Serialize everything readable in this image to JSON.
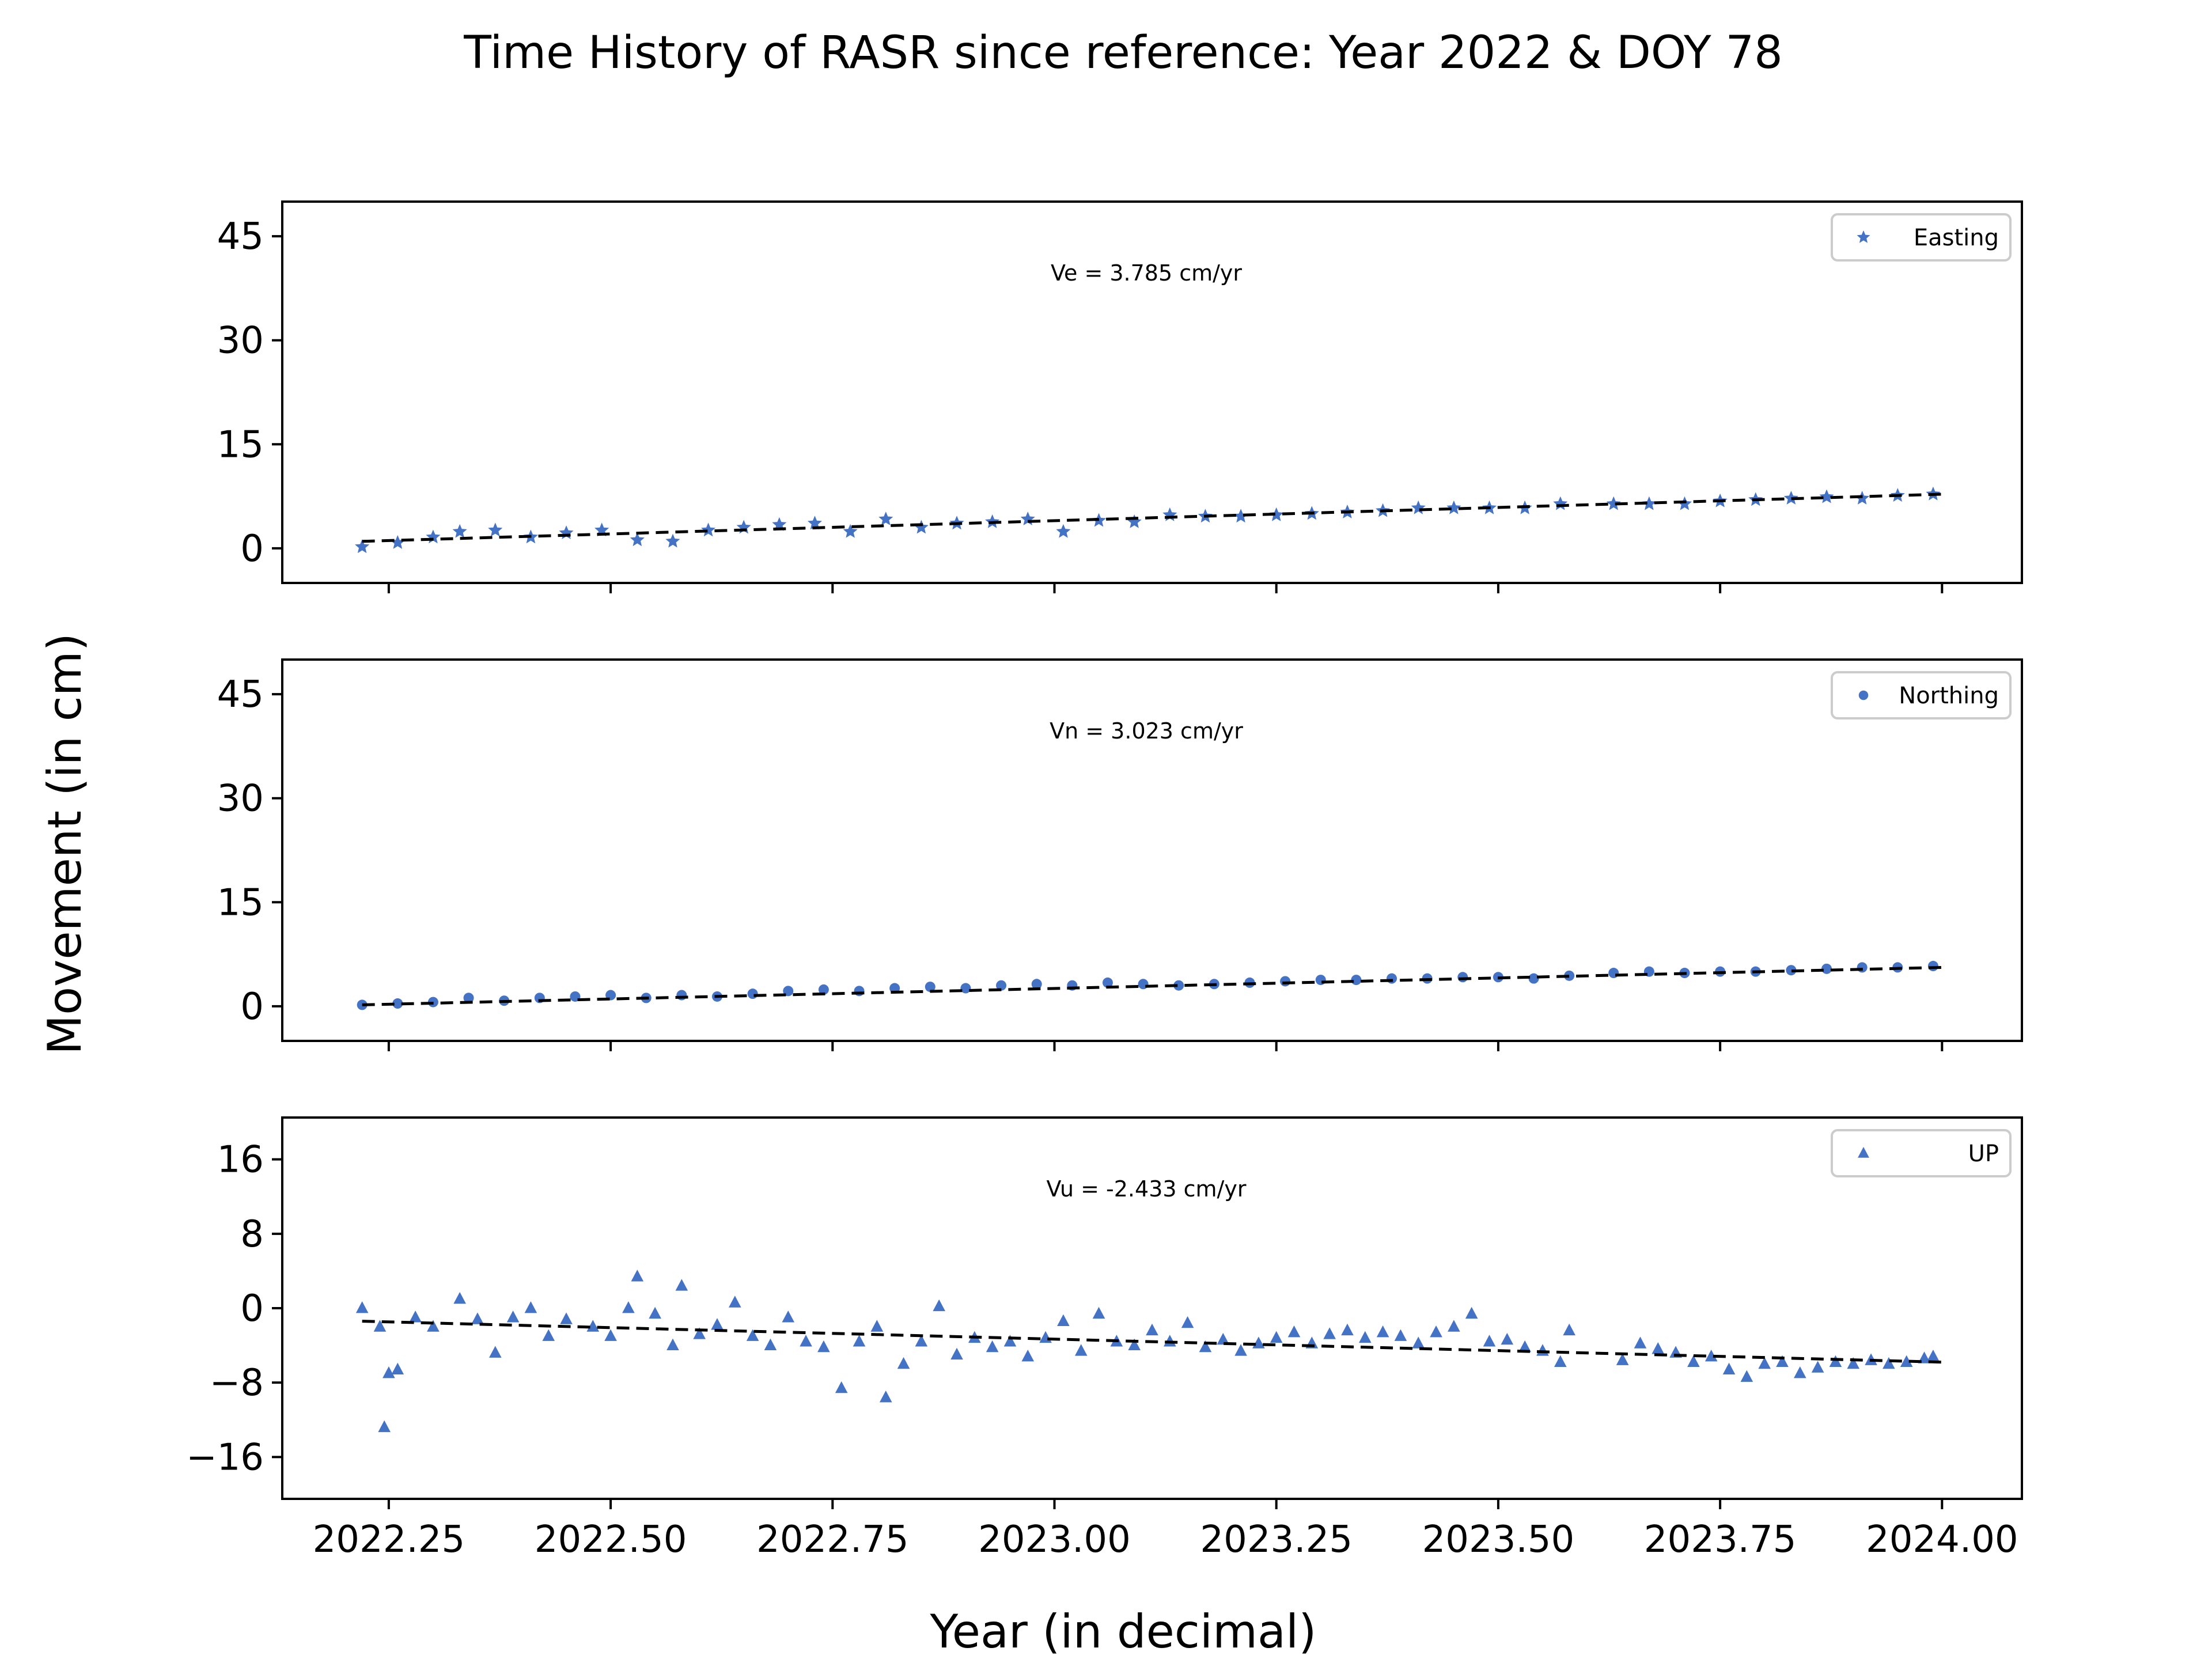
{
  "figure": {
    "title": "Time History of RASR since reference: Year 2022 & DOY 78",
    "xlabel": "Year (in decimal)",
    "ylabel": "Movement (in cm)"
  },
  "colors": {
    "marker": "#4472C4",
    "fit": "#000000",
    "axes": "#000000"
  },
  "chart_data": [
    {
      "type": "scatter",
      "series": [
        {
          "name": "Easting",
          "marker": "star",
          "points": [
            [
              2022.22,
              0.2
            ],
            [
              2022.26,
              0.8
            ],
            [
              2022.3,
              1.6
            ],
            [
              2022.33,
              2.4
            ],
            [
              2022.37,
              2.6
            ],
            [
              2022.41,
              1.6
            ],
            [
              2022.45,
              2.2
            ],
            [
              2022.49,
              2.6
            ],
            [
              2022.53,
              1.2
            ],
            [
              2022.57,
              1.0
            ],
            [
              2022.61,
              2.6
            ],
            [
              2022.65,
              3.0
            ],
            [
              2022.69,
              3.4
            ],
            [
              2022.73,
              3.6
            ],
            [
              2022.77,
              2.4
            ],
            [
              2022.81,
              4.2
            ],
            [
              2022.85,
              3.0
            ],
            [
              2022.89,
              3.6
            ],
            [
              2022.93,
              3.8
            ],
            [
              2022.97,
              4.2
            ],
            [
              2023.01,
              2.4
            ],
            [
              2023.05,
              4.0
            ],
            [
              2023.09,
              3.8
            ],
            [
              2023.13,
              4.8
            ],
            [
              2023.17,
              4.6
            ],
            [
              2023.21,
              4.6
            ],
            [
              2023.25,
              4.8
            ],
            [
              2023.29,
              5.0
            ],
            [
              2023.33,
              5.2
            ],
            [
              2023.37,
              5.4
            ],
            [
              2023.41,
              5.8
            ],
            [
              2023.45,
              5.8
            ],
            [
              2023.49,
              5.8
            ],
            [
              2023.53,
              5.8
            ],
            [
              2023.57,
              6.4
            ],
            [
              2023.63,
              6.4
            ],
            [
              2023.67,
              6.4
            ],
            [
              2023.71,
              6.4
            ],
            [
              2023.75,
              6.8
            ],
            [
              2023.79,
              7.0
            ],
            [
              2023.83,
              7.2
            ],
            [
              2023.87,
              7.4
            ],
            [
              2023.91,
              7.2
            ],
            [
              2023.95,
              7.6
            ],
            [
              2023.99,
              7.8
            ]
          ]
        },
        {
          "name": "fit",
          "style": "dashed",
          "x": [
            2022.22,
            2024.0
          ],
          "y": [
            1.0,
            7.8
          ]
        }
      ],
      "annotation": "Ve =  3.785 cm/yr",
      "legend": {
        "label": "Easting",
        "position": "top-right"
      },
      "xlim": [
        2022.13,
        2024.09
      ],
      "ylim": [
        -5,
        50
      ],
      "yticks": [
        0,
        15,
        30,
        45
      ],
      "ytick_labels": [
        "0",
        "15",
        "30",
        "45"
      ]
    },
    {
      "type": "scatter",
      "series": [
        {
          "name": "Northing",
          "marker": "circle",
          "points": [
            [
              2022.22,
              0.2
            ],
            [
              2022.26,
              0.4
            ],
            [
              2022.3,
              0.6
            ],
            [
              2022.34,
              1.2
            ],
            [
              2022.38,
              0.8
            ],
            [
              2022.42,
              1.2
            ],
            [
              2022.46,
              1.4
            ],
            [
              2022.5,
              1.6
            ],
            [
              2022.54,
              1.2
            ],
            [
              2022.58,
              1.6
            ],
            [
              2022.62,
              1.4
            ],
            [
              2022.66,
              1.8
            ],
            [
              2022.7,
              2.2
            ],
            [
              2022.74,
              2.4
            ],
            [
              2022.78,
              2.2
            ],
            [
              2022.82,
              2.6
            ],
            [
              2022.86,
              2.8
            ],
            [
              2022.9,
              2.6
            ],
            [
              2022.94,
              3.0
            ],
            [
              2022.98,
              3.2
            ],
            [
              2023.02,
              3.0
            ],
            [
              2023.06,
              3.4
            ],
            [
              2023.1,
              3.2
            ],
            [
              2023.14,
              3.0
            ],
            [
              2023.18,
              3.2
            ],
            [
              2023.22,
              3.4
            ],
            [
              2023.26,
              3.6
            ],
            [
              2023.3,
              3.8
            ],
            [
              2023.34,
              3.8
            ],
            [
              2023.38,
              4.0
            ],
            [
              2023.42,
              4.0
            ],
            [
              2023.46,
              4.2
            ],
            [
              2023.5,
              4.2
            ],
            [
              2023.54,
              4.0
            ],
            [
              2023.58,
              4.4
            ],
            [
              2023.63,
              4.8
            ],
            [
              2023.67,
              5.0
            ],
            [
              2023.71,
              4.8
            ],
            [
              2023.75,
              5.0
            ],
            [
              2023.79,
              5.0
            ],
            [
              2023.83,
              5.2
            ],
            [
              2023.87,
              5.4
            ],
            [
              2023.91,
              5.6
            ],
            [
              2023.95,
              5.6
            ],
            [
              2023.99,
              5.8
            ]
          ]
        },
        {
          "name": "fit",
          "style": "dashed",
          "x": [
            2022.22,
            2024.0
          ],
          "y": [
            0.2,
            5.6
          ]
        }
      ],
      "annotation": "Vn =  3.023 cm/yr",
      "legend": {
        "label": "Northing",
        "position": "top-right"
      },
      "xlim": [
        2022.13,
        2024.09
      ],
      "ylim": [
        -5,
        50
      ],
      "yticks": [
        0,
        15,
        30,
        45
      ],
      "ytick_labels": [
        "0",
        "15",
        "30",
        "45"
      ]
    },
    {
      "type": "scatter",
      "series": [
        {
          "name": "UP",
          "marker": "triangle",
          "points": [
            [
              2022.22,
              0.0
            ],
            [
              2022.24,
              -2.0
            ],
            [
              2022.245,
              -12.8
            ],
            [
              2022.25,
              -7.0
            ],
            [
              2022.26,
              -6.6
            ],
            [
              2022.28,
              -1.0
            ],
            [
              2022.3,
              -2.0
            ],
            [
              2022.33,
              1.0
            ],
            [
              2022.35,
              -1.2
            ],
            [
              2022.37,
              -4.8
            ],
            [
              2022.39,
              -1.0
            ],
            [
              2022.41,
              0.0
            ],
            [
              2022.43,
              -3.0
            ],
            [
              2022.45,
              -1.2
            ],
            [
              2022.48,
              -2.0
            ],
            [
              2022.5,
              -3.0
            ],
            [
              2022.52,
              0.0
            ],
            [
              2022.53,
              3.4
            ],
            [
              2022.55,
              -0.6
            ],
            [
              2022.57,
              -4.0
            ],
            [
              2022.58,
              2.4
            ],
            [
              2022.6,
              -2.8
            ],
            [
              2022.62,
              -1.8
            ],
            [
              2022.64,
              0.6
            ],
            [
              2022.66,
              -3.0
            ],
            [
              2022.68,
              -4.0
            ],
            [
              2022.7,
              -1.0
            ],
            [
              2022.72,
              -3.6
            ],
            [
              2022.74,
              -4.2
            ],
            [
              2022.76,
              -8.6
            ],
            [
              2022.78,
              -3.6
            ],
            [
              2022.8,
              -2.0
            ],
            [
              2022.81,
              -9.6
            ],
            [
              2022.83,
              -6.0
            ],
            [
              2022.85,
              -3.6
            ],
            [
              2022.87,
              0.2
            ],
            [
              2022.89,
              -5.0
            ],
            [
              2022.91,
              -3.2
            ],
            [
              2022.93,
              -4.2
            ],
            [
              2022.95,
              -3.6
            ],
            [
              2022.97,
              -5.2
            ],
            [
              2022.99,
              -3.2
            ],
            [
              2023.01,
              -1.4
            ],
            [
              2023.03,
              -4.6
            ],
            [
              2023.05,
              -0.6
            ],
            [
              2023.07,
              -3.6
            ],
            [
              2023.09,
              -4.0
            ],
            [
              2023.11,
              -2.4
            ],
            [
              2023.13,
              -3.6
            ],
            [
              2023.15,
              -1.6
            ],
            [
              2023.17,
              -4.2
            ],
            [
              2023.19,
              -3.4
            ],
            [
              2023.21,
              -4.6
            ],
            [
              2023.23,
              -3.8
            ],
            [
              2023.25,
              -3.2
            ],
            [
              2023.27,
              -2.6
            ],
            [
              2023.29,
              -3.8
            ],
            [
              2023.31,
              -2.8
            ],
            [
              2023.33,
              -2.4
            ],
            [
              2023.35,
              -3.2
            ],
            [
              2023.37,
              -2.6
            ],
            [
              2023.39,
              -3.0
            ],
            [
              2023.41,
              -3.8
            ],
            [
              2023.43,
              -2.6
            ],
            [
              2023.45,
              -2.0
            ],
            [
              2023.47,
              -0.6
            ],
            [
              2023.49,
              -3.6
            ],
            [
              2023.51,
              -3.4
            ],
            [
              2023.53,
              -4.2
            ],
            [
              2023.55,
              -4.6
            ],
            [
              2023.57,
              -5.8
            ],
            [
              2023.58,
              -2.4
            ],
            [
              2023.64,
              -5.6
            ],
            [
              2023.66,
              -3.8
            ],
            [
              2023.68,
              -4.4
            ],
            [
              2023.7,
              -4.8
            ],
            [
              2023.72,
              -5.8
            ],
            [
              2023.74,
              -5.2
            ],
            [
              2023.76,
              -6.6
            ],
            [
              2023.78,
              -7.4
            ],
            [
              2023.8,
              -6.0
            ],
            [
              2023.82,
              -5.8
            ],
            [
              2023.84,
              -7.0
            ],
            [
              2023.86,
              -6.4
            ],
            [
              2023.88,
              -5.8
            ],
            [
              2023.9,
              -6.0
            ],
            [
              2023.92,
              -5.6
            ],
            [
              2023.94,
              -6.0
            ],
            [
              2023.96,
              -5.8
            ],
            [
              2023.98,
              -5.4
            ],
            [
              2023.99,
              -5.2
            ]
          ]
        },
        {
          "name": "fit",
          "style": "dashed",
          "x": [
            2022.22,
            2024.0
          ],
          "y": [
            -1.4,
            -5.8
          ]
        }
      ],
      "annotation": "Vu = -2.433 cm/yr",
      "legend": {
        "label": "UP",
        "position": "top-right"
      },
      "xlim": [
        2022.13,
        2024.09
      ],
      "ylim": [
        -20.5,
        20.5
      ],
      "yticks": [
        -16,
        -8,
        0,
        8,
        16
      ],
      "ytick_labels": [
        "−16",
        "−8",
        "0",
        "8",
        "16"
      ],
      "xticks": [
        2022.25,
        2022.5,
        2022.75,
        2023.0,
        2023.25,
        2023.5,
        2023.75,
        2024.0
      ],
      "xtick_labels": [
        "2022.25",
        "2022.50",
        "2022.75",
        "2023.00",
        "2023.25",
        "2023.50",
        "2023.75",
        "2024.00"
      ]
    }
  ]
}
